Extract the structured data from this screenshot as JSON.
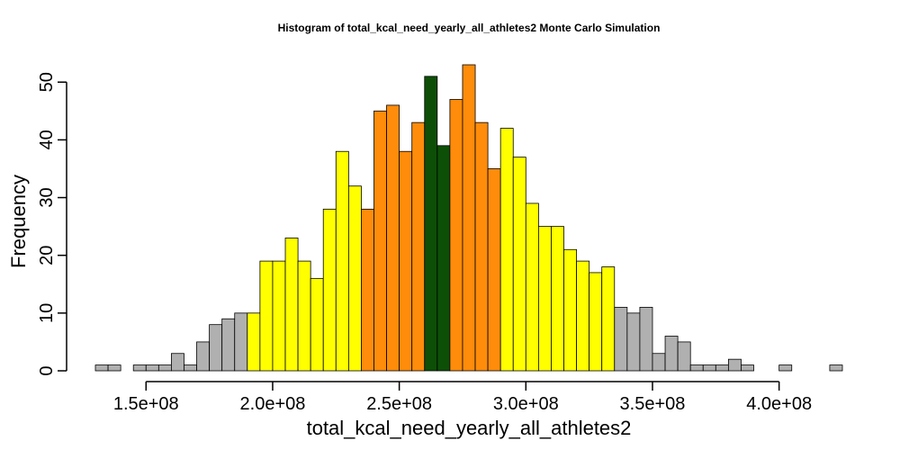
{
  "chart_data": {
    "type": "bar",
    "title": "Histogram of  total_kcal_need_yearly_all_athletes2  Monte Carlo Simulation",
    "xlabel": "total_kcal_need_yearly_all_athletes2",
    "ylabel": "Frequency",
    "x_range": [
      130000000,
      425000000
    ],
    "ylim": [
      0,
      53
    ],
    "bin_width": 5000000,
    "bin_start": 130000000,
    "x_ticks": [
      150000000,
      200000000,
      250000000,
      300000000,
      350000000,
      400000000
    ],
    "x_tick_labels": [
      "1.5e+08",
      "2.0e+08",
      "2.5e+08",
      "3.0e+08",
      "3.5e+08",
      "4.0e+08"
    ],
    "y_ticks": [
      0,
      10,
      20,
      30,
      40,
      50
    ],
    "y_tick_labels": [
      "0",
      "10",
      "20",
      "30",
      "40",
      "50"
    ],
    "grid": false,
    "colors": {
      "gray": "#b0b0b0",
      "yellow": "#ffff00",
      "orange": "#ff8c0a",
      "green": "#0d4f06"
    },
    "bins": [
      {
        "value": 1,
        "color": "gray"
      },
      {
        "value": 1,
        "color": "gray"
      },
      {
        "value": 0,
        "color": "gray"
      },
      {
        "value": 1,
        "color": "gray"
      },
      {
        "value": 1,
        "color": "gray"
      },
      {
        "value": 1,
        "color": "gray"
      },
      {
        "value": 3,
        "color": "gray"
      },
      {
        "value": 1,
        "color": "gray"
      },
      {
        "value": 5,
        "color": "gray"
      },
      {
        "value": 8,
        "color": "gray"
      },
      {
        "value": 9,
        "color": "gray"
      },
      {
        "value": 10,
        "color": "gray"
      },
      {
        "value": 10,
        "color": "yellow"
      },
      {
        "value": 19,
        "color": "yellow"
      },
      {
        "value": 19,
        "color": "yellow"
      },
      {
        "value": 23,
        "color": "yellow"
      },
      {
        "value": 19,
        "color": "yellow"
      },
      {
        "value": 16,
        "color": "yellow"
      },
      {
        "value": 28,
        "color": "yellow"
      },
      {
        "value": 38,
        "color": "yellow"
      },
      {
        "value": 32,
        "color": "yellow"
      },
      {
        "value": 28,
        "color": "orange"
      },
      {
        "value": 45,
        "color": "orange"
      },
      {
        "value": 46,
        "color": "orange"
      },
      {
        "value": 38,
        "color": "orange"
      },
      {
        "value": 43,
        "color": "orange"
      },
      {
        "value": 51,
        "color": "green"
      },
      {
        "value": 39,
        "color": "green"
      },
      {
        "value": 47,
        "color": "orange"
      },
      {
        "value": 53,
        "color": "orange"
      },
      {
        "value": 43,
        "color": "orange"
      },
      {
        "value": 35,
        "color": "orange"
      },
      {
        "value": 42,
        "color": "yellow"
      },
      {
        "value": 37,
        "color": "yellow"
      },
      {
        "value": 29,
        "color": "yellow"
      },
      {
        "value": 25,
        "color": "yellow"
      },
      {
        "value": 25,
        "color": "yellow"
      },
      {
        "value": 21,
        "color": "yellow"
      },
      {
        "value": 19,
        "color": "yellow"
      },
      {
        "value": 17,
        "color": "yellow"
      },
      {
        "value": 18,
        "color": "yellow"
      },
      {
        "value": 11,
        "color": "gray"
      },
      {
        "value": 10,
        "color": "gray"
      },
      {
        "value": 11,
        "color": "gray"
      },
      {
        "value": 3,
        "color": "gray"
      },
      {
        "value": 6,
        "color": "gray"
      },
      {
        "value": 5,
        "color": "gray"
      },
      {
        "value": 1,
        "color": "gray"
      },
      {
        "value": 1,
        "color": "gray"
      },
      {
        "value": 1,
        "color": "gray"
      },
      {
        "value": 2,
        "color": "gray"
      },
      {
        "value": 1,
        "color": "gray"
      },
      {
        "value": 0,
        "color": "gray"
      },
      {
        "value": 0,
        "color": "gray"
      },
      {
        "value": 1,
        "color": "gray"
      },
      {
        "value": 0,
        "color": "gray"
      },
      {
        "value": 0,
        "color": "gray"
      },
      {
        "value": 0,
        "color": "gray"
      },
      {
        "value": 1,
        "color": "gray"
      }
    ]
  }
}
